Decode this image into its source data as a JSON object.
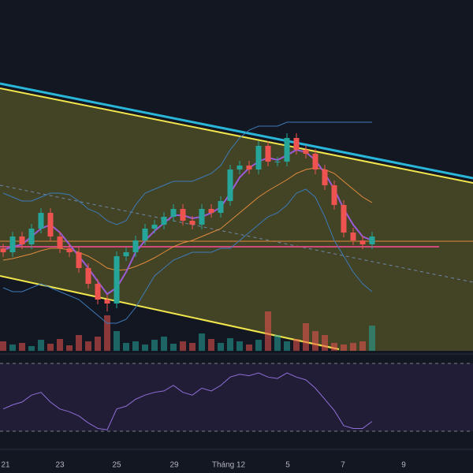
{
  "chart_data": {
    "type": "candlestick",
    "x_labels": [
      "21",
      "23",
      "25",
      "29",
      "Tháng 12",
      "5",
      "7",
      "9"
    ],
    "ylim": [
      0,
      445
    ],
    "up_color": "#26a69a",
    "down_color": "#ef5350",
    "open": [
      130,
      125,
      145,
      135,
      155,
      175,
      145,
      130,
      125,
      105,
      85,
      65,
      60,
      120,
      125,
      140,
      155,
      160,
      170,
      180,
      165,
      160,
      180,
      175,
      190,
      230,
      235,
      230,
      260,
      240,
      240,
      270,
      255,
      250,
      230,
      210,
      185,
      150,
      140,
      135
    ],
    "close": [
      125,
      145,
      135,
      155,
      175,
      145,
      130,
      125,
      105,
      85,
      65,
      60,
      120,
      125,
      140,
      155,
      160,
      170,
      180,
      165,
      160,
      180,
      175,
      190,
      230,
      235,
      230,
      260,
      240,
      240,
      270,
      255,
      250,
      230,
      210,
      185,
      150,
      140,
      135,
      145
    ],
    "high": [
      136,
      151,
      151,
      161,
      181,
      181,
      151,
      136,
      131,
      111,
      91,
      71,
      126,
      131,
      146,
      161,
      166,
      176,
      186,
      186,
      171,
      186,
      186,
      196,
      236,
      241,
      241,
      266,
      266,
      246,
      276,
      276,
      261,
      256,
      236,
      216,
      191,
      156,
      146,
      151
    ],
    "low": [
      119,
      119,
      129,
      129,
      149,
      139,
      124,
      119,
      99,
      79,
      59,
      50,
      54,
      114,
      119,
      134,
      149,
      154,
      164,
      159,
      154,
      154,
      169,
      169,
      184,
      224,
      224,
      224,
      234,
      234,
      234,
      249,
      244,
      224,
      204,
      179,
      144,
      134,
      129,
      129
    ],
    "series": [
      {
        "color": "#3d7ab8",
        "values": [
          200,
          195,
          190,
          190,
          195,
          200,
          200,
          198,
          190,
          180,
          175,
          165,
          160,
          165,
          185,
          200,
          205,
          210,
          215,
          215,
          215,
          220,
          225,
          235,
          255,
          270,
          280,
          285,
          285,
          285,
          290,
          290,
          290,
          290,
          290,
          290,
          290,
          290,
          290,
          290
        ]
      },
      {
        "color": "#3d7ab8",
        "values": [
          80,
          75,
          75,
          80,
          85,
          80,
          75,
          70,
          65,
          55,
          45,
          35,
          35,
          40,
          55,
          75,
          95,
          105,
          115,
          120,
          125,
          125,
          125,
          130,
          130,
          140,
          150,
          160,
          170,
          175,
          185,
          200,
          205,
          195,
          170,
          140,
          120,
          100,
          85,
          75
        ]
      },
      {
        "color": "#e08a3c",
        "values": [
          115,
          117,
          120,
          123,
          127,
          130,
          130,
          128,
          125,
          120,
          113,
          105,
          102,
          103,
          107,
          112,
          118,
          125,
          132,
          137,
          140,
          145,
          150,
          155,
          165,
          175,
          185,
          195,
          203,
          210,
          217,
          225,
          230,
          232,
          230,
          225,
          215,
          205,
          195,
          188
        ]
      },
      {
        "color": "#9c5bd6",
        "values": [
          128,
          132,
          135,
          145,
          155,
          160,
          150,
          135,
          120,
          105,
          88,
          72,
          80,
          100,
          125,
          140,
          152,
          162,
          172,
          172,
          168,
          170,
          175,
          182,
          200,
          220,
          232,
          240,
          245,
          242,
          248,
          255,
          252,
          242,
          225,
          205,
          180,
          160,
          145,
          140
        ]
      }
    ],
    "volume_ylim": [
      0,
      200
    ],
    "volume": [
      12,
      8,
      10,
      6,
      14,
      9,
      15,
      7,
      20,
      12,
      18,
      45,
      25,
      10,
      12,
      8,
      14,
      18,
      9,
      12,
      10,
      22,
      15,
      10,
      16,
      12,
      8,
      14,
      50,
      20,
      12,
      15,
      35,
      25,
      20,
      10,
      8,
      10,
      12,
      32
    ],
    "rsi_ylim": [
      25,
      75
    ],
    "rsi_color": "#8e6fd6",
    "rsi": [
      45,
      48,
      50,
      55,
      57,
      50,
      45,
      43,
      40,
      35,
      31,
      30,
      45,
      47,
      52,
      55,
      57,
      58,
      62,
      57,
      55,
      60,
      58,
      62,
      68,
      70,
      69,
      71,
      68,
      67,
      71,
      68,
      66,
      60,
      52,
      44,
      33,
      31,
      31,
      36
    ]
  }
}
